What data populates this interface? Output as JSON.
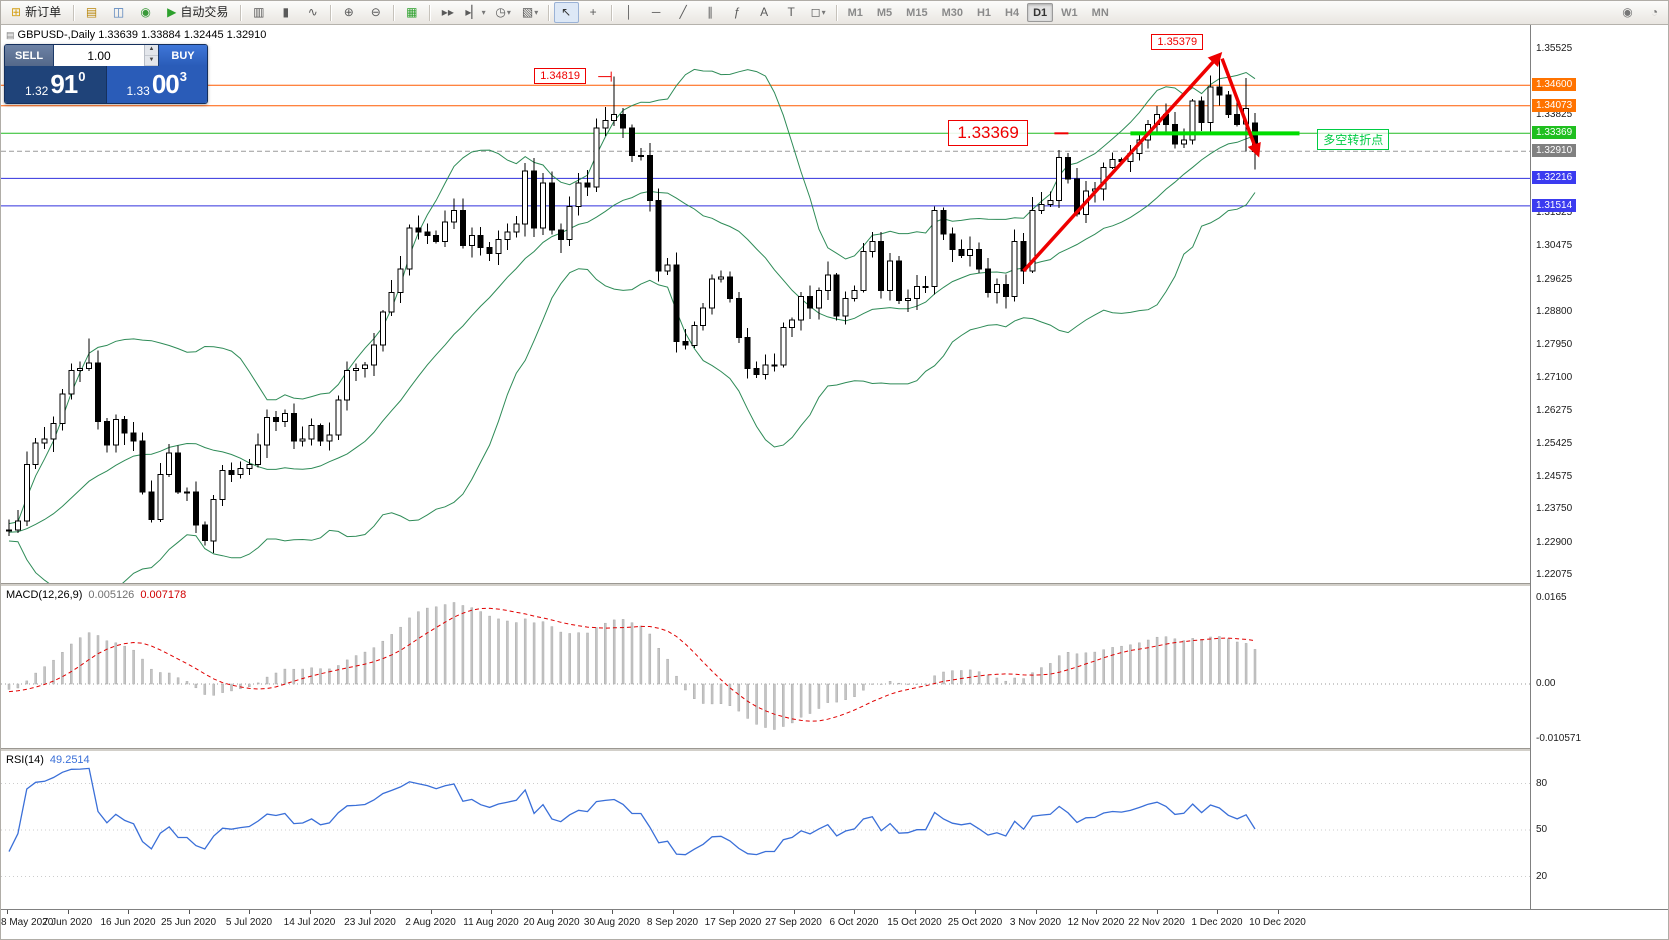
{
  "toolbar": {
    "timeframes": [
      "M1",
      "M5",
      "M15",
      "M30",
      "H1",
      "H4",
      "D1",
      "W1",
      "MN"
    ],
    "active_timeframe": "D1",
    "groups": [
      {
        "type": "button-label",
        "name": "new-order-button",
        "icon_name": "new-order-icon",
        "glyph": "⊞",
        "glyph_color": "#d4a017",
        "label": "新订单"
      },
      {
        "type": "sep"
      },
      {
        "type": "icons",
        "items": [
          {
            "name": "market-watch-icon",
            "glyph": "▤",
            "color": "#b8860b"
          },
          {
            "name": "data-window-icon",
            "glyph": "◫",
            "color": "#4a7ab8"
          },
          {
            "name": "navigator-icon",
            "glyph": "◉",
            "color": "#3a9a3a"
          }
        ]
      },
      {
        "type": "button-label",
        "name": "autotrading-button",
        "icon_name": "autotrading-play-icon",
        "glyph": "▶",
        "glyph_color": "#2ca02c",
        "label": "自动交易"
      },
      {
        "type": "sep"
      },
      {
        "type": "icons",
        "items": [
          {
            "name": "bar-chart-icon",
            "glyph": "▥"
          },
          {
            "name": "candlestick-chart-icon",
            "glyph": "▮"
          },
          {
            "name": "line-chart-icon",
            "glyph": "∿"
          }
        ]
      },
      {
        "type": "sep"
      },
      {
        "type": "icons",
        "items": [
          {
            "name": "zoom-in-icon",
            "glyph": "⊕"
          },
          {
            "name": "zoom-out-icon",
            "glyph": "⊖"
          }
        ]
      },
      {
        "type": "sep"
      },
      {
        "type": "icons",
        "items": [
          {
            "name": "tile-windows-icon",
            "glyph": "▦",
            "color": "#2ca02c"
          }
        ]
      },
      {
        "type": "sep"
      },
      {
        "type": "icons",
        "items": [
          {
            "name": "auto-scroll-icon",
            "glyph": "▸▸"
          },
          {
            "name": "chart-shift-icon",
            "glyph": "▸▏",
            "dropdown": true
          },
          {
            "name": "periods-icon",
            "glyph": "◷",
            "dropdown": true
          },
          {
            "name": "templates-icon",
            "glyph": "▧",
            "dropdown": true
          }
        ]
      },
      {
        "type": "sep"
      },
      {
        "type": "icons",
        "items": [
          {
            "name": "cursor-icon",
            "glyph": "↖",
            "active": true
          },
          {
            "name": "crosshair-icon",
            "glyph": "+"
          }
        ]
      },
      {
        "type": "sep"
      },
      {
        "type": "icons",
        "items": [
          {
            "name": "vertical-line-icon",
            "glyph": "│"
          },
          {
            "name": "horizontal-line-icon",
            "glyph": "─"
          },
          {
            "name": "trendline-icon",
            "glyph": "╱"
          },
          {
            "name": "channel-icon",
            "glyph": "∥"
          },
          {
            "name": "fibonacci-icon",
            "glyph": "ƒ"
          },
          {
            "name": "text-icon",
            "glyph": "A"
          },
          {
            "name": "label-icon",
            "glyph": "T"
          },
          {
            "name": "shapes-icon",
            "glyph": "◻",
            "dropdown": true
          }
        ]
      },
      {
        "type": "sep"
      },
      {
        "type": "timeframes"
      },
      {
        "type": "spacer"
      },
      {
        "type": "icons",
        "items": [
          {
            "name": "community-icon",
            "glyph": "◉",
            "color": "#777777"
          },
          {
            "name": "help-icon",
            "glyph": "◔",
            "color": "#777777"
          }
        ]
      }
    ]
  },
  "chart": {
    "title": "GBPUSD-,Daily 1.33639 1.33884 1.32445 1.32910",
    "symbol": "GBPUSD-",
    "period": "Daily"
  },
  "order_panel": {
    "sell_label": "SELL",
    "buy_label": "BUY",
    "volume": "1.00",
    "bid": {
      "prefix": "1.32",
      "big": "91",
      "sup": "0"
    },
    "ask": {
      "prefix": "1.33",
      "big": "00",
      "sup": "3"
    }
  },
  "annotations": {
    "high": {
      "text": "1.34819",
      "index": 68,
      "price": 1.34819
    },
    "peak": {
      "text": "1.35379",
      "index": 136,
      "price": 1.35379
    },
    "pivot": {
      "text": "1.33369",
      "index": 106,
      "price": 1.33369
    },
    "note": {
      "text": "多空转折点",
      "index": 147,
      "price": 1.33369
    }
  },
  "drawings": {
    "pivot_segment": {
      "index_from": 126,
      "index_to": 145,
      "price": 1.33369,
      "color": "#00dd00"
    },
    "trend_arrows": [
      {
        "from": {
          "index": 114,
          "price": 1.2985
        },
        "to": {
          "index": 136,
          "price": 1.3537
        }
      },
      {
        "from": {
          "index": 136.3,
          "price": 1.3528
        },
        "to": {
          "index": 140.3,
          "price": 1.3285
        }
      }
    ]
  },
  "hlines": [
    {
      "price": 1.346,
      "color": "#ff5a00"
    },
    {
      "price": 1.34073,
      "color": "#ff5a00"
    },
    {
      "price": 1.33369,
      "color": "#22bb22"
    },
    {
      "price": 1.3291,
      "color": "#9a9a9a",
      "dash": "5 3"
    },
    {
      "price": 1.32216,
      "color": "#3030dd"
    },
    {
      "price": 1.31514,
      "color": "#3030dd"
    }
  ],
  "price_axis": {
    "plain": [
      1.35525,
      1.33825,
      1.31325,
      1.30475,
      1.29625,
      1.288,
      1.2795,
      1.271,
      1.26275,
      1.25425,
      1.24575,
      1.2375,
      1.229,
      1.22075
    ],
    "tags": [
      {
        "value": "1.34600",
        "price": 1.346,
        "color": "#ff7300"
      },
      {
        "value": "1.34073",
        "price": 1.34073,
        "color": "#ff7300"
      },
      {
        "value": "1.33369",
        "price": 1.33369,
        "color": "#1fbf1f"
      },
      {
        "value": "1.32910",
        "price": 1.3291,
        "color": "#808080"
      },
      {
        "value": "1.32216",
        "price": 1.32216,
        "color": "#3b3bf0"
      },
      {
        "value": "1.31514",
        "price": 1.31514,
        "color": "#3b3bf0"
      }
    ]
  },
  "indicators": {
    "macd": {
      "name": "MACD(12,26,9)",
      "value_main": "0.005126",
      "value_signal": "0.007178",
      "axis": [
        {
          "text": "0.0165",
          "value": 0.0165
        },
        {
          "text": "0.00",
          "value": 0
        },
        {
          "text": "-0.010571",
          "value": -0.010571
        }
      ]
    },
    "rsi": {
      "name": "RSI(14)",
      "value": "49.2514",
      "levels": [
        {
          "text": "80",
          "value": 80
        },
        {
          "text": "50",
          "value": 50
        },
        {
          "text": "20",
          "value": 20
        }
      ]
    }
  },
  "chart_data": {
    "type": "candlestick",
    "symbol": "GBPUSD",
    "timeframe": "Daily",
    "ohlc_current": {
      "open": 1.33639,
      "high": 1.33884,
      "low": 1.32445,
      "close": 1.3291
    },
    "bid": 1.3291,
    "ask": 1.33003,
    "price_range": [
      1.22075,
      1.35525
    ],
    "overlays": [
      "Bollinger Bands (20,2)"
    ],
    "panels": [
      "MACD(12,26,9)",
      "RSI(14)"
    ],
    "warmup_closes": [
      1.24,
      1.239,
      1.238,
      1.2365,
      1.235,
      1.234,
      1.233,
      1.232,
      1.233,
      1.232,
      1.231,
      1.23,
      1.2295,
      1.23,
      1.231,
      1.232,
      1.2315,
      1.2305,
      1.231,
      1.232,
      1.233,
      1.234,
      1.233,
      1.232,
      1.2318,
      1.232
    ],
    "closes": [
      1.2322,
      1.2345,
      1.249,
      1.2545,
      1.2555,
      1.2595,
      1.267,
      1.273,
      1.2735,
      1.275,
      1.26,
      1.254,
      1.2605,
      1.257,
      1.255,
      1.242,
      1.235,
      1.2465,
      1.252,
      1.242,
      1.242,
      1.2335,
      1.2295,
      1.24,
      1.2475,
      1.2465,
      1.248,
      1.249,
      1.254,
      1.261,
      1.26,
      1.262,
      1.255,
      1.2555,
      1.259,
      1.255,
      1.2565,
      1.2655,
      1.273,
      1.2735,
      1.2745,
      1.2795,
      1.288,
      1.293,
      1.299,
      1.3095,
      1.3085,
      1.3075,
      1.306,
      1.311,
      1.314,
      1.305,
      1.3075,
      1.3045,
      1.303,
      1.3065,
      1.3085,
      1.3105,
      1.324,
      1.3095,
      1.321,
      1.309,
      1.3065,
      1.315,
      1.321,
      1.32,
      1.335,
      1.337,
      1.3385,
      1.335,
      1.328,
      1.328,
      1.3165,
      1.2985,
      1.3,
      1.2805,
      1.2795,
      1.2845,
      1.289,
      1.2965,
      1.297,
      1.2915,
      1.2815,
      1.2735,
      1.272,
      1.2745,
      1.2745,
      1.284,
      1.286,
      1.292,
      1.289,
      1.2935,
      1.2975,
      1.287,
      1.2915,
      1.2935,
      1.3035,
      1.306,
      1.2935,
      1.301,
      1.291,
      1.2915,
      1.2945,
      1.2945,
      1.314,
      1.308,
      1.304,
      1.3025,
      1.304,
      1.299,
      1.293,
      1.295,
      1.292,
      1.306,
      1.2985,
      1.314,
      1.3155,
      1.3165,
      1.3275,
      1.322,
      1.313,
      1.319,
      1.3195,
      1.325,
      1.327,
      1.3265,
      1.3285,
      1.332,
      1.336,
      1.3385,
      1.336,
      1.331,
      1.332,
      1.342,
      1.3365,
      1.3455,
      1.3435,
      1.3385,
      1.336,
      1.34,
      1.3291
    ],
    "overrides": {
      "9": {
        "high": 1.2812
      },
      "68": {
        "high": 1.34819
      },
      "136": {
        "high": 1.35379
      },
      "139": {
        "high": 1.3478,
        "low": 1.329
      },
      "140": {
        "open": 1.33639,
        "high": 1.33884,
        "low": 1.32445
      }
    },
    "time_labels": [
      "8 May 2020",
      "7 Jun 2020",
      "16 Jun 2020",
      "25 Jun 2020",
      "5 Jul 2020",
      "14 Jul 2020",
      "23 Jul 2020",
      "2 Aug 2020",
      "11 Aug 2020",
      "20 Aug 2020",
      "30 Aug 2020",
      "8 Sep 2020",
      "17 Sep 2020",
      "27 Sep 2020",
      "6 Oct 2020",
      "15 Oct 2020",
      "25 Oct 2020",
      "3 Nov 2020",
      "12 Nov 2020",
      "22 Nov 2020",
      "1 Dec 2020",
      "10 Dec 2020"
    ]
  }
}
